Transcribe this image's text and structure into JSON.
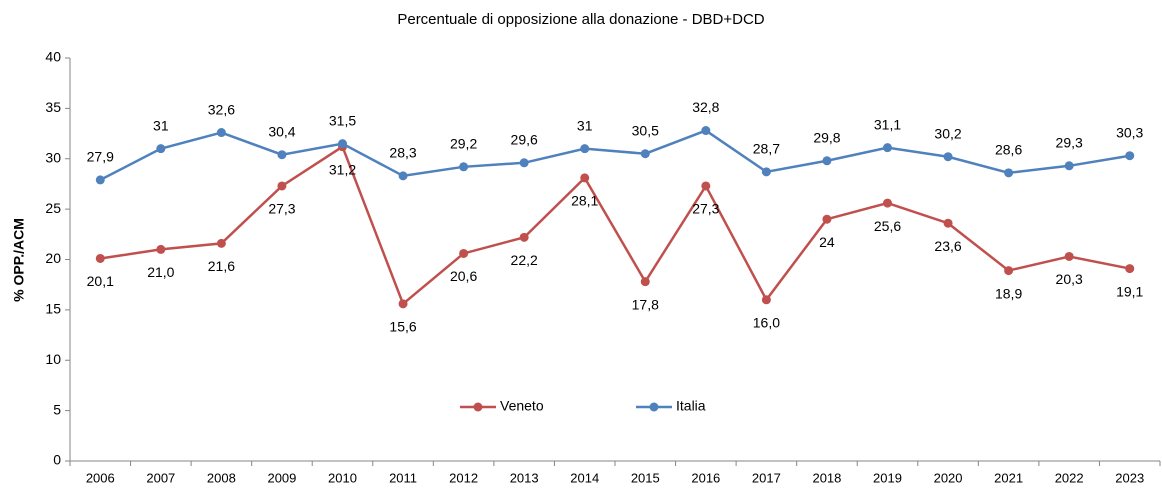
{
  "chart_data": {
    "type": "line",
    "title": "Percentuale di opposizione alla donazione - DBD+DCD",
    "y_label": "% OPP./ACM",
    "categories": [
      "2006",
      "2007",
      "2008",
      "2009",
      "2010",
      "2011",
      "2012",
      "2013",
      "2014",
      "2015",
      "2016",
      "2017",
      "2018",
      "2019",
      "2020",
      "2021",
      "2022",
      "2023"
    ],
    "series": [
      {
        "name": "Veneto",
        "color": "#c0504d",
        "label_position": "below",
        "values": [
          20.1,
          21.0,
          21.6,
          27.3,
          31.2,
          15.6,
          20.6,
          22.2,
          28.1,
          17.8,
          27.3,
          16.0,
          24,
          25.6,
          23.6,
          18.9,
          20.3,
          19.1
        ],
        "value_labels": [
          "20,1",
          "21,0",
          "21,6",
          "27,3",
          "31,2",
          "15,6",
          "20,6",
          "22,2",
          "28,1",
          "17,8",
          "27,3",
          "16,0",
          "24",
          "25,6",
          "23,6",
          "18,9",
          "20,3",
          "19,1"
        ]
      },
      {
        "name": "Italia",
        "color": "#4f81bd",
        "label_position": "above",
        "values": [
          27.9,
          31,
          32.6,
          30.4,
          31.5,
          28.3,
          29.2,
          29.6,
          31,
          30.5,
          32.8,
          28.7,
          29.8,
          31.1,
          30.2,
          28.6,
          29.3,
          30.3
        ],
        "value_labels": [
          "27,9",
          "31",
          "32,6",
          "30,4",
          "31,5",
          "28,3",
          "29,2",
          "29,6",
          "31",
          "30,5",
          "32,8",
          "28,7",
          "29,8",
          "31,1",
          "30,2",
          "28,6",
          "29,3",
          "30,3"
        ]
      }
    ],
    "ylim": [
      0,
      40
    ],
    "yticks": [
      0,
      5,
      10,
      15,
      20,
      25,
      30,
      35,
      40
    ],
    "grid": false,
    "legend": "bottom"
  }
}
